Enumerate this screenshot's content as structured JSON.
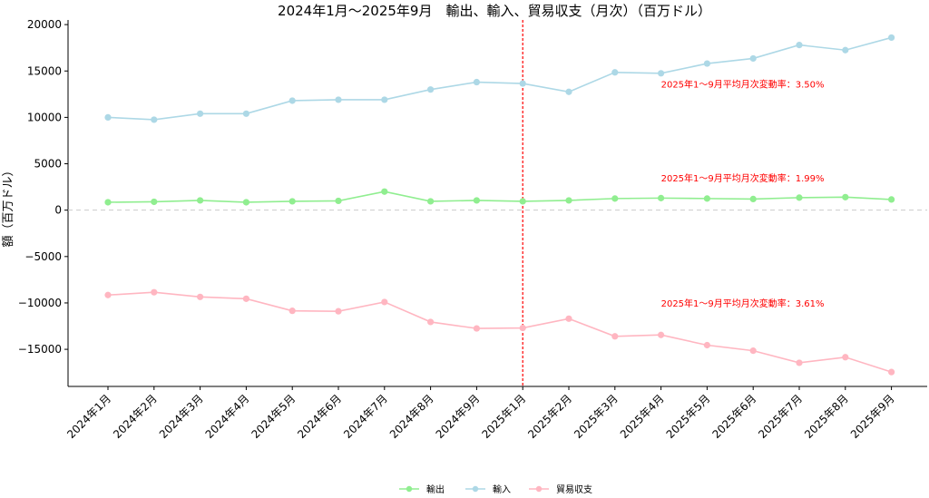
{
  "chart_data": {
    "type": "line",
    "title": "2024年1月～2025年9月　輸出、輸入、貿易収支（月次）（百万ドル）",
    "ylabel": "額（百万ドル）",
    "xlabel": "",
    "ylim": [
      -19000,
      20500
    ],
    "yticks": [
      -15000,
      -10000,
      -5000,
      0,
      5000,
      10000,
      15000,
      20000
    ],
    "ytick_labels": [
      "−15000",
      "−10000",
      "−5000",
      "0",
      "5000",
      "10000",
      "15000",
      "20000"
    ],
    "categories": [
      "2024年1月",
      "2024年2月",
      "2024年3月",
      "2024年4月",
      "2024年5月",
      "2024年6月",
      "2024年7月",
      "2024年8月",
      "2024年9月",
      "2025年1月",
      "2025年2月",
      "2025年3月",
      "2025年4月",
      "2025年5月",
      "2025年6月",
      "2025年7月",
      "2025年8月",
      "2025年9月"
    ],
    "series": [
      {
        "name": "輸出",
        "color": "#90ee90",
        "values": [
          850,
          900,
          1050,
          850,
          950,
          1000,
          2000,
          950,
          1050,
          950,
          1050,
          1250,
          1300,
          1250,
          1200,
          1350,
          1400,
          1150
        ]
      },
      {
        "name": "輸入",
        "color": "#add8e6",
        "values": [
          10000,
          9750,
          10400,
          10400,
          11800,
          11900,
          11900,
          13000,
          13800,
          13650,
          12750,
          14850,
          14750,
          15800,
          16350,
          17800,
          17250,
          18600
        ]
      },
      {
        "name": "貿易収支",
        "color": "#ffb6c1",
        "values": [
          -9150,
          -8850,
          -9350,
          -9550,
          -10850,
          -10900,
          -9900,
          -12050,
          -12750,
          -12700,
          -11700,
          -13600,
          -13450,
          -14550,
          -15150,
          -16450,
          -15850,
          -17450
        ]
      }
    ],
    "zero_line": {
      "value": 0,
      "style": "dashed",
      "color": "#cccccc"
    },
    "divider": {
      "at_category": "2025年1月",
      "style": "dashed",
      "color": "#ff0000"
    },
    "annotations": [
      {
        "text": "2025年1～9月平均月次変動率：3.50%",
        "x_category": "2025年4月",
        "y": 13200,
        "color": "#ff0000"
      },
      {
        "text": "2025年1～9月平均月次変動率：1.99%",
        "x_category": "2025年4月",
        "y": 3100,
        "color": "#ff0000"
      },
      {
        "text": "2025年1～9月平均月次変動率：3.61%",
        "x_category": "2025年4月",
        "y": -10400,
        "color": "#ff0000"
      }
    ],
    "legend": {
      "placement": "bottom-center",
      "entries": [
        "輸出",
        "輸入",
        "貿易収支"
      ]
    },
    "grid": false
  }
}
